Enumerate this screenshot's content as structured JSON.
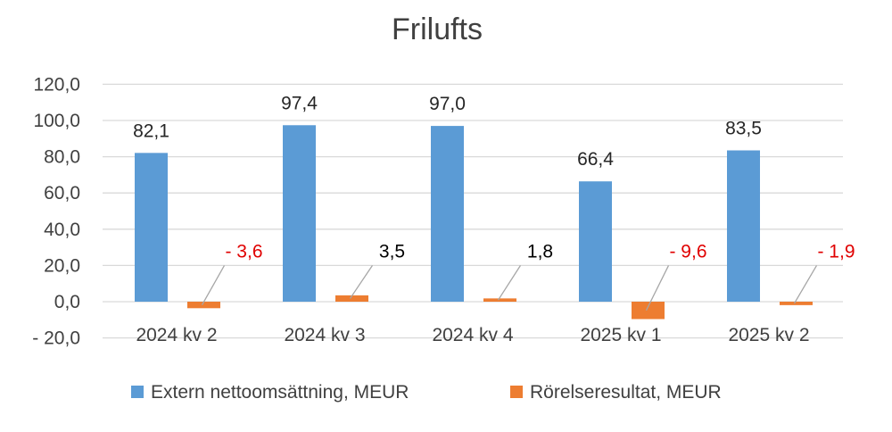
{
  "chart_data": {
    "type": "bar",
    "title": "Frilufts",
    "categories": [
      "2024 kv 2",
      "2024 kv 3",
      "2024 kv 4",
      "2025 kv 1",
      "2025 kv 2"
    ],
    "series": [
      {
        "name": "Extern nettoomsättning, MEUR",
        "color": "#5b9bd5",
        "values": [
          82.1,
          97.4,
          97.0,
          66.4,
          83.5
        ],
        "labels": [
          "82,1",
          "97,4",
          "97,0",
          "66,4",
          "83,5"
        ],
        "label_color": "#262626"
      },
      {
        "name": "Rörelseresultat, MEUR",
        "color": "#ed7d31",
        "values": [
          -3.6,
          3.5,
          1.8,
          -9.6,
          -1.9
        ],
        "labels": [
          "- 3,6",
          "3,5",
          "1,8",
          "- 9,6",
          "- 1,9"
        ],
        "label_colors": [
          "#e00000",
          "#000000",
          "#000000",
          "#e00000",
          "#e00000"
        ]
      }
    ],
    "ylim": [
      -20,
      120
    ],
    "yticks": [
      120,
      100,
      80,
      60,
      40,
      20,
      0,
      -20
    ],
    "ytick_labels": [
      "120,0",
      "100,0",
      "80,0",
      "60,0",
      "40,0",
      "20,0",
      "0,0",
      "- 20,0"
    ],
    "grid": true,
    "legend_position": "bottom",
    "xlabel": "",
    "ylabel": ""
  }
}
